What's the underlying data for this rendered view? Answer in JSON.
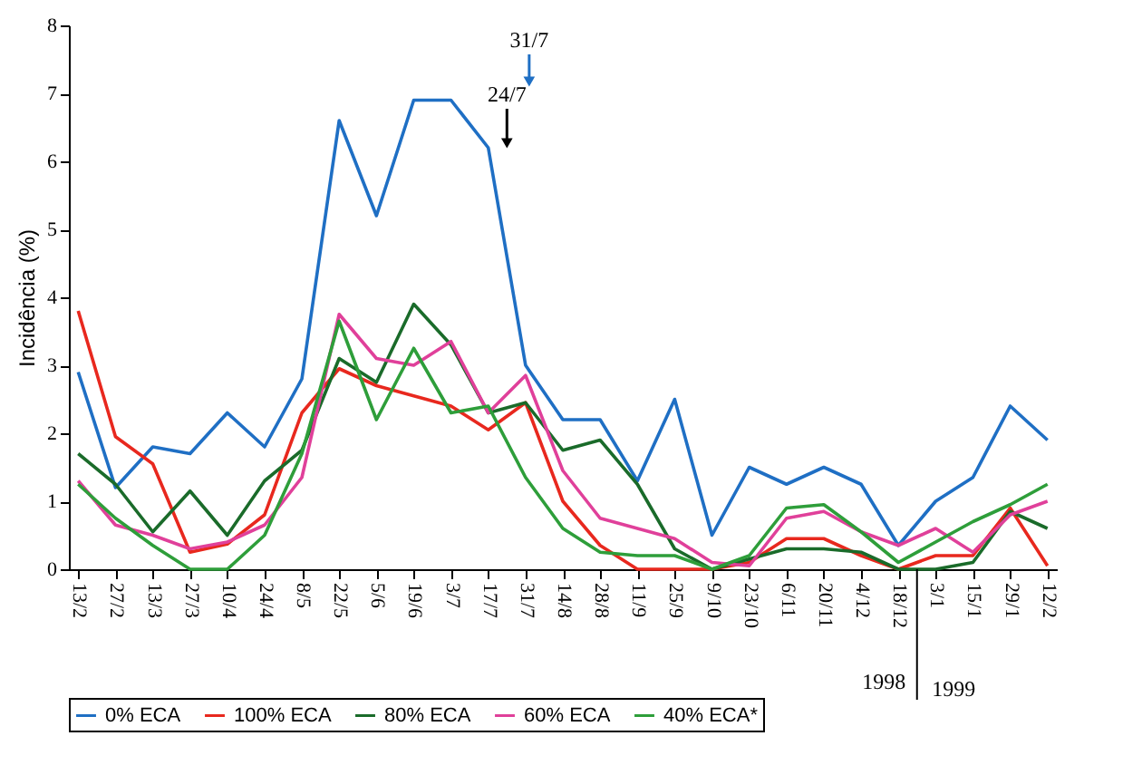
{
  "chart_data": {
    "type": "line",
    "ylabel": "Incidência (%)",
    "categories": [
      "13/2",
      "27/2",
      "13/3",
      "27/3",
      "10/4",
      "24/4",
      "8/5",
      "22/5",
      "5/6",
      "19/6",
      "3/7",
      "17/7",
      "31/7",
      "14/8",
      "28/8",
      "11/9",
      "25/9",
      "9/10",
      "23/10",
      "6/11",
      "20/11",
      "4/12",
      "18/12",
      "3/1",
      "15/1",
      "29/1",
      "12/2"
    ],
    "series": [
      {
        "name": "0% ECA",
        "color": "#1f6fc4",
        "values": [
          2.9,
          1.2,
          1.8,
          1.7,
          2.3,
          1.8,
          2.8,
          6.6,
          5.2,
          6.9,
          6.9,
          6.2,
          3.0,
          2.2,
          2.2,
          1.3,
          2.5,
          0.5,
          1.5,
          1.25,
          1.5,
          1.25,
          0.35,
          1.0,
          1.35,
          2.4,
          1.9
        ]
      },
      {
        "name": "100% ECA",
        "color": "#e8281e",
        "values": [
          3.8,
          1.95,
          1.55,
          0.25,
          0.37,
          0.8,
          2.3,
          2.95,
          2.7,
          2.55,
          2.4,
          2.05,
          2.45,
          1.0,
          0.35,
          0,
          0,
          0,
          0.1,
          0.45,
          0.45,
          0.2,
          0,
          0.2,
          0.2,
          0.9,
          0.05
        ]
      },
      {
        "name": "80% ECA",
        "color": "#1a6b2a",
        "values": [
          1.7,
          1.25,
          0.55,
          1.15,
          0.5,
          1.3,
          1.75,
          3.1,
          2.75,
          3.9,
          3.3,
          2.3,
          2.45,
          1.75,
          1.9,
          1.25,
          0.3,
          0,
          0.15,
          0.3,
          0.3,
          0.25,
          0,
          0,
          0.1,
          0.85,
          0.6
        ]
      },
      {
        "name": "60% ECA",
        "color": "#e0409a",
        "values": [
          1.3,
          0.65,
          0.5,
          0.3,
          0.4,
          0.65,
          1.35,
          3.75,
          3.1,
          3.0,
          3.35,
          2.3,
          2.85,
          1.45,
          0.75,
          0.6,
          0.45,
          0.1,
          0.05,
          0.75,
          0.85,
          0.55,
          0.35,
          0.6,
          0.25,
          0.8,
          1.0
        ]
      },
      {
        "name": "40% ECA*",
        "color": "#2e9e3a",
        "values": [
          1.25,
          0.75,
          0.35,
          0,
          0,
          0.5,
          1.7,
          3.65,
          2.2,
          3.25,
          2.3,
          2.4,
          1.35,
          0.6,
          0.25,
          0.2,
          0.2,
          0,
          0.2,
          0.9,
          0.95,
          0.55,
          0.1,
          0.4,
          0.7,
          0.95,
          1.25
        ]
      }
    ],
    "ylim": [
      0,
      8
    ],
    "yticks": [
      0,
      1,
      2,
      3,
      4,
      5,
      6,
      7,
      8
    ],
    "grid": false,
    "legend": "bottom",
    "marker": "none",
    "line_style": "solid",
    "annotations": [
      "31/7",
      "24/7",
      "1998",
      "1999"
    ]
  }
}
